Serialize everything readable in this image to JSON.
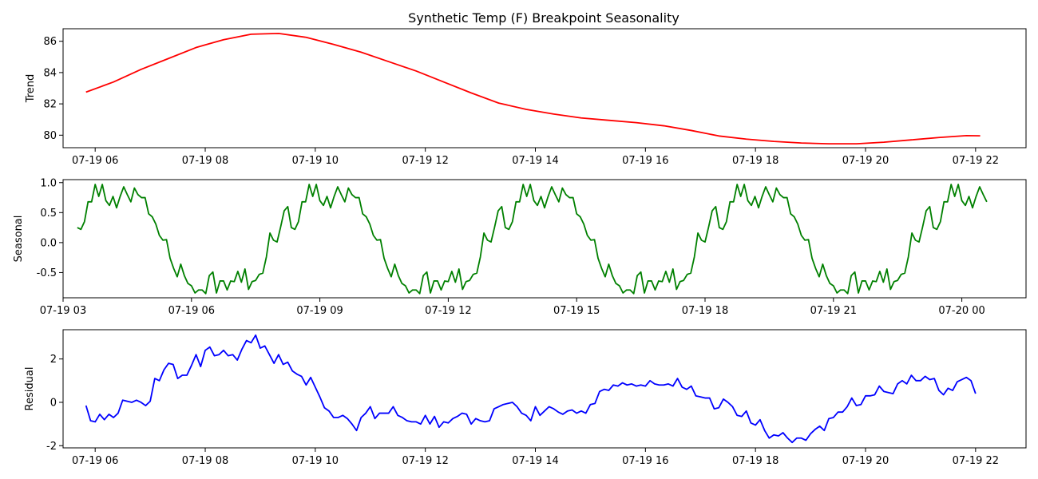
{
  "figure": {
    "title": "Synthetic Temp (F) Breakpoint Seasonality"
  },
  "chart_data": [
    {
      "type": "line",
      "ylabel": "Trend",
      "color": "#ff0000",
      "xlim": [
        "2024-07-19 05:25",
        "2024-07-19 22:55"
      ],
      "ylim": [
        79.2,
        86.8
      ],
      "grid": false,
      "x_ticks": [
        {
          "x": "2024-07-19 06:00",
          "label": "07-19 06"
        },
        {
          "x": "2024-07-19 08:00",
          "label": "07-19 08"
        },
        {
          "x": "2024-07-19 10:00",
          "label": "07-19 10"
        },
        {
          "x": "2024-07-19 12:00",
          "label": "07-19 12"
        },
        {
          "x": "2024-07-19 14:00",
          "label": "07-19 14"
        },
        {
          "x": "2024-07-19 16:00",
          "label": "07-19 16"
        },
        {
          "x": "2024-07-19 18:00",
          "label": "07-19 18"
        },
        {
          "x": "2024-07-19 20:00",
          "label": "07-19 20"
        },
        {
          "x": "2024-07-19 22:00",
          "label": "07-19 22"
        }
      ],
      "y_ticks": [
        80,
        82,
        84,
        86
      ],
      "series": [
        {
          "x": [
            "2024-07-19 05:50",
            "2024-07-19 06:20",
            "2024-07-19 06:50",
            "2024-07-19 07:20",
            "2024-07-19 07:50",
            "2024-07-19 08:20",
            "2024-07-19 08:50",
            "2024-07-19 09:20",
            "2024-07-19 09:50",
            "2024-07-19 10:20",
            "2024-07-19 10:50",
            "2024-07-19 11:20",
            "2024-07-19 11:50",
            "2024-07-19 12:20",
            "2024-07-19 12:50",
            "2024-07-19 13:20",
            "2024-07-19 13:50",
            "2024-07-19 14:20",
            "2024-07-19 14:50",
            "2024-07-19 15:20",
            "2024-07-19 15:50",
            "2024-07-19 16:20",
            "2024-07-19 16:50",
            "2024-07-19 17:20",
            "2024-07-19 17:50",
            "2024-07-19 18:20",
            "2024-07-19 18:50",
            "2024-07-19 19:20",
            "2024-07-19 19:50",
            "2024-07-19 20:20",
            "2024-07-19 20:50",
            "2024-07-19 21:20",
            "2024-07-19 21:50",
            "2024-07-19 22:05"
          ],
          "values": [
            82.75,
            83.4,
            84.2,
            84.9,
            85.6,
            86.1,
            86.45,
            86.5,
            86.25,
            85.8,
            85.3,
            84.7,
            84.1,
            83.4,
            82.7,
            82.05,
            81.65,
            81.35,
            81.1,
            80.95,
            80.8,
            80.6,
            80.3,
            79.95,
            79.75,
            79.6,
            79.5,
            79.45,
            79.45,
            79.55,
            79.7,
            79.85,
            79.97,
            79.96
          ]
        }
      ]
    },
    {
      "type": "line",
      "ylabel": "Seasonal",
      "color": "#008000",
      "xlim": [
        "2024-07-19 03:00",
        "2024-07-20 01:30"
      ],
      "ylim": [
        -0.92,
        1.05
      ],
      "grid": false,
      "x_ticks": [
        {
          "x": "2024-07-19 03:00",
          "label": "07-19 03"
        },
        {
          "x": "2024-07-19 06:00",
          "label": "07-19 06"
        },
        {
          "x": "2024-07-19 09:00",
          "label": "07-19 09"
        },
        {
          "x": "2024-07-19 12:00",
          "label": "07-19 12"
        },
        {
          "x": "2024-07-19 15:00",
          "label": "07-19 15"
        },
        {
          "x": "2024-07-19 18:00",
          "label": "07-19 18"
        },
        {
          "x": "2024-07-19 21:00",
          "label": "07-19 21"
        },
        {
          "x": "2024-07-20 00:00",
          "label": "07-20 00"
        }
      ],
      "y_ticks": [
        -0.5,
        0.0,
        0.5,
        1.0
      ],
      "series": [
        {
          "start": "2024-07-19 03:20",
          "step_minutes": 5,
          "values": [
            0.25,
            0.22,
            0.35,
            0.68,
            0.68,
            0.97,
            0.77,
            0.97,
            0.7,
            0.62,
            0.77,
            0.58,
            0.77,
            0.93,
            0.8,
            0.68,
            0.91,
            0.8,
            0.75,
            0.75,
            0.48,
            0.43,
            0.31,
            0.12,
            0.04,
            0.05,
            -0.26,
            -0.43,
            -0.57,
            -0.36,
            -0.55,
            -0.68,
            -0.72,
            -0.84,
            -0.79,
            -0.79,
            -0.85,
            -0.55,
            -0.49,
            -0.84,
            -0.64,
            -0.64,
            -0.79,
            -0.64,
            -0.65,
            -0.48,
            -0.66,
            -0.44,
            -0.78,
            -0.65,
            -0.63,
            -0.53,
            -0.51,
            -0.24,
            0.16,
            0.04,
            0.01,
            0.26,
            0.53,
            0.6,
            0.25,
            0.22,
            0.35,
            0.68,
            0.68,
            0.97,
            0.77,
            0.97,
            0.7,
            0.62,
            0.77,
            0.58,
            0.77,
            0.93,
            0.8,
            0.68,
            0.91,
            0.8,
            0.75,
            0.75,
            0.48,
            0.43,
            0.31,
            0.12,
            0.04,
            0.05,
            -0.26,
            -0.43,
            -0.57,
            -0.36,
            -0.55,
            -0.68,
            -0.72,
            -0.84,
            -0.79,
            -0.79,
            -0.85,
            -0.55,
            -0.49,
            -0.84,
            -0.64,
            -0.64,
            -0.79,
            -0.64,
            -0.65,
            -0.48,
            -0.66,
            -0.44,
            -0.78,
            -0.65,
            -0.63,
            -0.53,
            -0.51,
            -0.24,
            0.16,
            0.04,
            0.01,
            0.26,
            0.53,
            0.6,
            0.25,
            0.22,
            0.35,
            0.68,
            0.68,
            0.97,
            0.77,
            0.97,
            0.7,
            0.62,
            0.77,
            0.58,
            0.77,
            0.93,
            0.8,
            0.68,
            0.91,
            0.8,
            0.75,
            0.75,
            0.48,
            0.43,
            0.31,
            0.12,
            0.04,
            0.05,
            -0.26,
            -0.43,
            -0.57,
            -0.36,
            -0.55,
            -0.68,
            -0.72,
            -0.84,
            -0.79,
            -0.79,
            -0.85,
            -0.55,
            -0.49,
            -0.84,
            -0.64,
            -0.64,
            -0.79,
            -0.64,
            -0.65,
            -0.48,
            -0.66,
            -0.44,
            -0.78,
            -0.65,
            -0.63,
            -0.53,
            -0.51,
            -0.24,
            0.16,
            0.04,
            0.01,
            0.26,
            0.53,
            0.6,
            0.25,
            0.22,
            0.35,
            0.68,
            0.68,
            0.97,
            0.77,
            0.97,
            0.7,
            0.62,
            0.77,
            0.58,
            0.77,
            0.93,
            0.8,
            0.68,
            0.91,
            0.8,
            0.75,
            0.75,
            0.48,
            0.43,
            0.31,
            0.12,
            0.04,
            0.05,
            -0.26,
            -0.43,
            -0.57,
            -0.36,
            -0.55,
            -0.68,
            -0.72,
            -0.84,
            -0.79,
            -0.79,
            -0.85,
            -0.55,
            -0.49,
            -0.84,
            -0.64,
            -0.64,
            -0.79,
            -0.64,
            -0.65,
            -0.48,
            -0.66,
            -0.44,
            -0.78,
            -0.65,
            -0.63,
            -0.53,
            -0.51,
            -0.24,
            0.16,
            0.04,
            0.01,
            0.26,
            0.53,
            0.6,
            0.25,
            0.22,
            0.35,
            0.68,
            0.68,
            0.97,
            0.77,
            0.97,
            0.7,
            0.62,
            0.77,
            0.58,
            0.77,
            0.93,
            0.8,
            0.68
          ]
        }
      ]
    },
    {
      "type": "line",
      "ylabel": "Residual",
      "color": "#0000ff",
      "xlim": [
        "2024-07-19 05:25",
        "2024-07-19 22:55"
      ],
      "ylim": [
        -2.1,
        3.35
      ],
      "grid": false,
      "x_ticks": [
        {
          "x": "2024-07-19 06:00",
          "label": "07-19 06"
        },
        {
          "x": "2024-07-19 08:00",
          "label": "07-19 08"
        },
        {
          "x": "2024-07-19 10:00",
          "label": "07-19 10"
        },
        {
          "x": "2024-07-19 12:00",
          "label": "07-19 12"
        },
        {
          "x": "2024-07-19 14:00",
          "label": "07-19 14"
        },
        {
          "x": "2024-07-19 16:00",
          "label": "07-19 16"
        },
        {
          "x": "2024-07-19 18:00",
          "label": "07-19 18"
        },
        {
          "x": "2024-07-19 20:00",
          "label": "07-19 20"
        },
        {
          "x": "2024-07-19 22:00",
          "label": "07-19 22"
        }
      ],
      "y_ticks": [
        -2,
        0,
        2
      ],
      "series": [
        {
          "start": "2024-07-19 05:50",
          "step_minutes": 5,
          "values": [
            -0.15,
            -0.85,
            -0.9,
            -0.55,
            -0.8,
            -0.55,
            -0.7,
            -0.5,
            0.1,
            0.05,
            0.0,
            0.1,
            0.0,
            -0.15,
            0.05,
            1.1,
            1.0,
            1.5,
            1.8,
            1.75,
            1.1,
            1.25,
            1.25,
            1.7,
            2.2,
            1.65,
            2.4,
            2.55,
            2.15,
            2.2,
            2.4,
            2.15,
            2.2,
            1.95,
            2.45,
            2.85,
            2.75,
            3.1,
            2.5,
            2.6,
            2.2,
            1.8,
            2.2,
            1.75,
            1.85,
            1.45,
            1.3,
            1.2,
            0.8,
            1.15,
            0.7,
            0.25,
            -0.25,
            -0.4,
            -0.7,
            -0.7,
            -0.6,
            -0.75,
            -1.0,
            -1.3,
            -0.7,
            -0.5,
            -0.2,
            -0.75,
            -0.5,
            -0.5,
            -0.5,
            -0.2,
            -0.6,
            -0.7,
            -0.85,
            -0.9,
            -0.9,
            -1.0,
            -0.6,
            -1.0,
            -0.65,
            -1.15,
            -0.9,
            -0.95,
            -0.75,
            -0.65,
            -0.5,
            -0.55,
            -1.0,
            -0.75,
            -0.85,
            -0.9,
            -0.85,
            -0.3,
            -0.2,
            -0.1,
            -0.05,
            0.0,
            -0.2,
            -0.5,
            -0.6,
            -0.85,
            -0.2,
            -0.6,
            -0.4,
            -0.2,
            -0.3,
            -0.45,
            -0.55,
            -0.4,
            -0.35,
            -0.5,
            -0.4,
            -0.5,
            -0.1,
            -0.05,
            0.5,
            0.6,
            0.55,
            0.8,
            0.75,
            0.9,
            0.8,
            0.85,
            0.75,
            0.8,
            0.75,
            1.0,
            0.85,
            0.8,
            0.8,
            0.85,
            0.75,
            1.1,
            0.7,
            0.6,
            0.75,
            0.3,
            0.25,
            0.2,
            0.2,
            -0.3,
            -0.25,
            0.15,
            0.0,
            -0.2,
            -0.6,
            -0.65,
            -0.4,
            -0.95,
            -1.05,
            -0.8,
            -1.3,
            -1.65,
            -1.5,
            -1.55,
            -1.4,
            -1.65,
            -1.85,
            -1.65,
            -1.65,
            -1.75,
            -1.45,
            -1.25,
            -1.1,
            -1.3,
            -0.75,
            -0.7,
            -0.45,
            -0.45,
            -0.2,
            0.2,
            -0.15,
            -0.1,
            0.3,
            0.3,
            0.35,
            0.75,
            0.5,
            0.45,
            0.4,
            0.85,
            1.0,
            0.85,
            1.25,
            1.0,
            1.0,
            1.2,
            1.05,
            1.1,
            0.55,
            0.35,
            0.65,
            0.55,
            0.95,
            1.05,
            1.15,
            1.0,
            0.4
          ]
        }
      ]
    }
  ]
}
